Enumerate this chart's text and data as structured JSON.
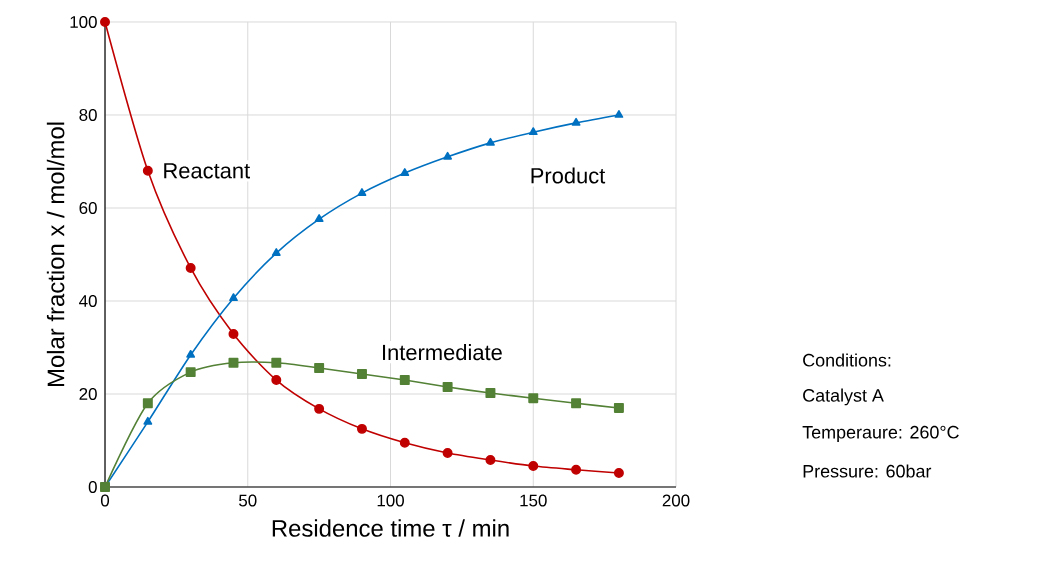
{
  "chart_data": {
    "type": "line",
    "xlabel": "Residence time τ / min",
    "ylabel": "Molar fraction x / mol/mol",
    "x": [
      0,
      15,
      30,
      45,
      60,
      75,
      90,
      105,
      120,
      135,
      150,
      165,
      180
    ],
    "series": [
      {
        "name": "Reactant",
        "color": "#c00000",
        "marker": "circle",
        "values": [
          100,
          68,
          47.1,
          32.9,
          23,
          16.8,
          12.5,
          9.5,
          7.3,
          5.8,
          4.5,
          3.7,
          3.0
        ]
      },
      {
        "name": "Product",
        "color": "#0070c0",
        "marker": "triangle",
        "values": [
          0,
          14,
          28.4,
          40.6,
          50.3,
          57.6,
          63.2,
          67.5,
          71,
          74,
          76.3,
          78.3,
          80
        ]
      },
      {
        "name": "Intermediate",
        "color": "#538135",
        "marker": "square",
        "values": [
          0,
          18,
          24.7,
          26.7,
          26.7,
          25.6,
          24.3,
          23,
          21.5,
          20.2,
          19.1,
          18,
          17
        ]
      }
    ],
    "xlim": [
      0,
      200
    ],
    "ylim": [
      0,
      100
    ],
    "xticks": [
      0,
      50,
      100,
      150,
      200
    ],
    "yticks": [
      0,
      20,
      40,
      60,
      80,
      100
    ],
    "grid": true,
    "annotations": [
      "Conditions:",
      "Catalyst A",
      "Temperaure: 260°C",
      "Pressure: 60bar"
    ]
  }
}
